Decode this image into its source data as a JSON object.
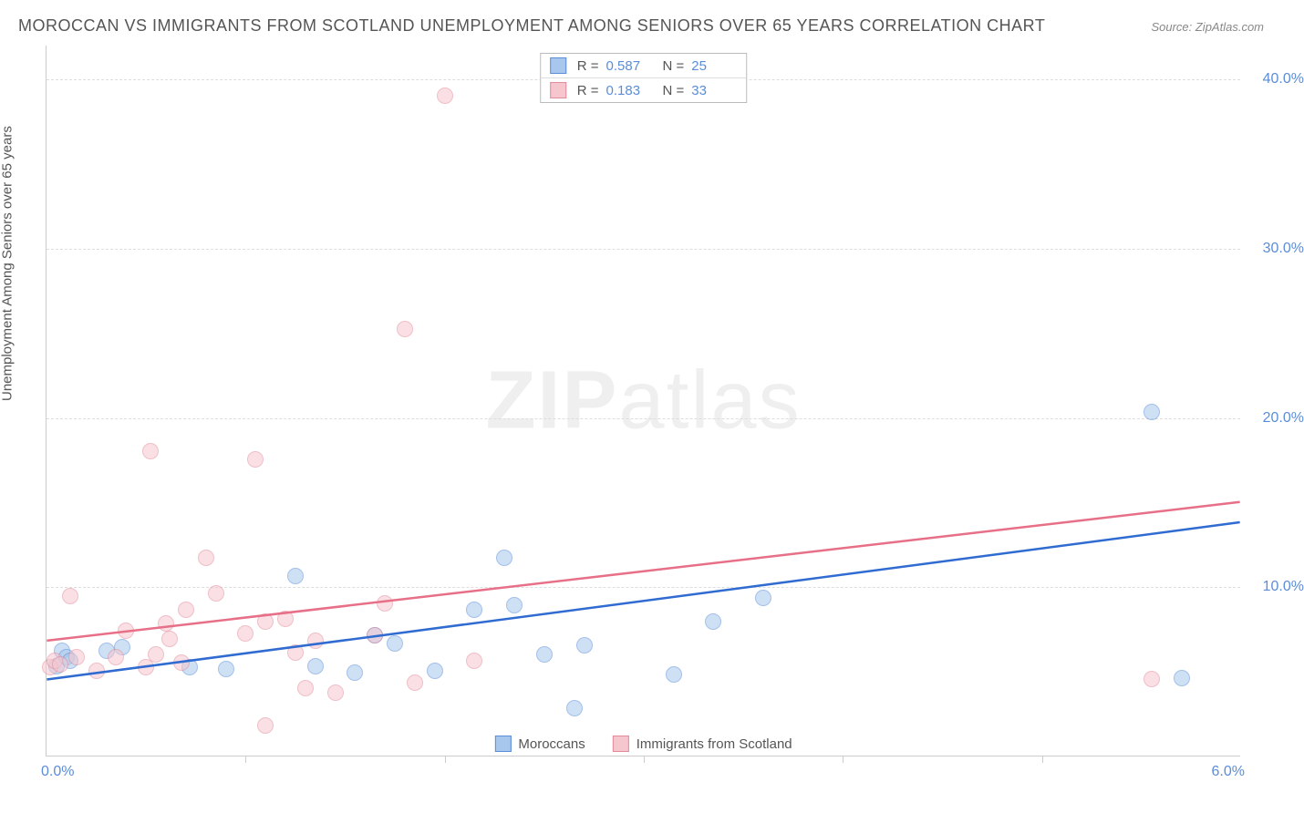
{
  "title": "MOROCCAN VS IMMIGRANTS FROM SCOTLAND UNEMPLOYMENT AMONG SENIORS OVER 65 YEARS CORRELATION CHART",
  "source": "Source: ZipAtlas.com",
  "y_axis_title": "Unemployment Among Seniors over 65 years",
  "watermark": {
    "bold": "ZIP",
    "rest": "atlas"
  },
  "chart": {
    "type": "scatter",
    "background": "#ffffff",
    "grid_color": "#dddddd",
    "axis_color": "#cccccc",
    "x": {
      "min": 0.0,
      "max": 6.0,
      "label_min": "0.0%",
      "label_max": "6.0%",
      "tick_step": 1.0
    },
    "y": {
      "min": 0.0,
      "max": 42.0,
      "ticks": [
        10.0,
        20.0,
        30.0,
        40.0
      ],
      "tick_labels": [
        "10.0%",
        "20.0%",
        "30.0%",
        "40.0%"
      ]
    },
    "point_radius": 9,
    "point_opacity": 0.55,
    "series": [
      {
        "id": "moroccans",
        "label": "Moroccans",
        "fill": "#a7c7ec",
        "stroke": "#5b8dd8",
        "trend_color": "#2f6bd0",
        "trend": {
          "x1": 0.0,
          "y1": 4.5,
          "x2": 6.0,
          "y2": 13.8
        },
        "stats": {
          "R": "0.587",
          "N": "25"
        },
        "points": [
          [
            0.05,
            5.3
          ],
          [
            0.08,
            6.2
          ],
          [
            0.1,
            5.8
          ],
          [
            0.12,
            5.6
          ],
          [
            0.3,
            6.2
          ],
          [
            0.38,
            6.4
          ],
          [
            0.72,
            5.2
          ],
          [
            0.9,
            5.1
          ],
          [
            1.25,
            10.6
          ],
          [
            1.35,
            5.3
          ],
          [
            1.55,
            4.9
          ],
          [
            1.65,
            7.1
          ],
          [
            1.75,
            6.6
          ],
          [
            1.95,
            5.0
          ],
          [
            2.15,
            8.6
          ],
          [
            2.3,
            11.7
          ],
          [
            2.35,
            8.9
          ],
          [
            2.5,
            6.0
          ],
          [
            2.65,
            2.8
          ],
          [
            2.7,
            6.5
          ],
          [
            3.15,
            4.8
          ],
          [
            3.35,
            7.9
          ],
          [
            3.6,
            9.3
          ],
          [
            5.55,
            20.3
          ],
          [
            5.7,
            4.6
          ]
        ]
      },
      {
        "id": "scotland",
        "label": "Immigrants from Scotland",
        "fill": "#f6c6cf",
        "stroke": "#e28b9b",
        "trend_color": "#e76f87",
        "trend": {
          "x1": 0.0,
          "y1": 6.8,
          "x2": 6.0,
          "y2": 15.0
        },
        "stats": {
          "R": "0.183",
          "N": "33"
        },
        "points": [
          [
            0.02,
            5.2
          ],
          [
            0.04,
            5.6
          ],
          [
            0.07,
            5.4
          ],
          [
            0.12,
            9.4
          ],
          [
            0.15,
            5.8
          ],
          [
            0.25,
            5.0
          ],
          [
            0.35,
            5.8
          ],
          [
            0.4,
            7.4
          ],
          [
            0.5,
            5.2
          ],
          [
            0.52,
            18.0
          ],
          [
            0.55,
            6.0
          ],
          [
            0.6,
            7.8
          ],
          [
            0.62,
            6.9
          ],
          [
            0.68,
            5.5
          ],
          [
            0.7,
            8.6
          ],
          [
            0.8,
            11.7
          ],
          [
            0.85,
            9.6
          ],
          [
            1.0,
            7.2
          ],
          [
            1.05,
            17.5
          ],
          [
            1.1,
            1.8
          ],
          [
            1.1,
            7.9
          ],
          [
            1.2,
            8.1
          ],
          [
            1.25,
            6.1
          ],
          [
            1.3,
            4.0
          ],
          [
            1.35,
            6.8
          ],
          [
            1.45,
            3.7
          ],
          [
            1.65,
            7.1
          ],
          [
            1.7,
            9.0
          ],
          [
            1.8,
            25.2
          ],
          [
            1.85,
            4.3
          ],
          [
            2.0,
            39.0
          ],
          [
            2.15,
            5.6
          ],
          [
            5.55,
            4.5
          ]
        ]
      }
    ]
  },
  "legend_top": {
    "R_label": "R =",
    "N_label": "N ="
  }
}
